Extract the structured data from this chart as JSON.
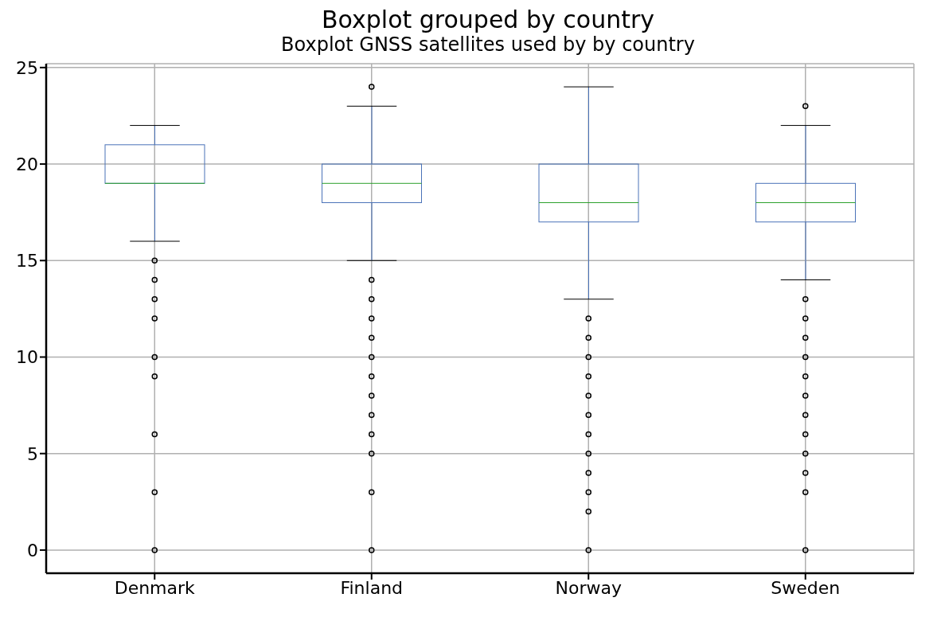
{
  "chart_data": {
    "type": "box",
    "title": "Boxplot grouped by country",
    "subtitle": "Boxplot GNSS satellites used by by country",
    "categories": [
      "Denmark",
      "Finland",
      "Norway",
      "Sweden"
    ],
    "series": [
      {
        "color": "#4a72b8",
        "boxes": [
          {
            "low": 16,
            "q1": 19,
            "median": 19,
            "q3": 21,
            "high": 22,
            "outliers": [
              15,
              14,
              13,
              12,
              10,
              9,
              6,
              3,
              0
            ]
          },
          {
            "low": 15,
            "q1": 18,
            "median": 19,
            "q3": 20,
            "high": 23,
            "outliers": [
              24,
              14,
              13,
              12,
              11,
              10,
              9,
              8,
              7,
              6,
              5,
              3,
              0
            ]
          },
          {
            "low": 13,
            "q1": 17,
            "median": 18,
            "q3": 20,
            "high": 24,
            "outliers": [
              12,
              11,
              10,
              9,
              8,
              7,
              6,
              5,
              4,
              3,
              2,
              0
            ]
          },
          {
            "low": 14,
            "q1": 17,
            "median": 18,
            "q3": 19,
            "high": 22,
            "outliers": [
              23,
              13,
              12,
              11,
              10,
              9,
              8,
              7,
              6,
              5,
              4,
              3,
              0
            ]
          }
        ]
      }
    ],
    "ylim": [
      -1.2,
      25.2
    ],
    "yticks": [
      0,
      5,
      10,
      15,
      20,
      25
    ],
    "grid": true,
    "marker": "circle"
  }
}
